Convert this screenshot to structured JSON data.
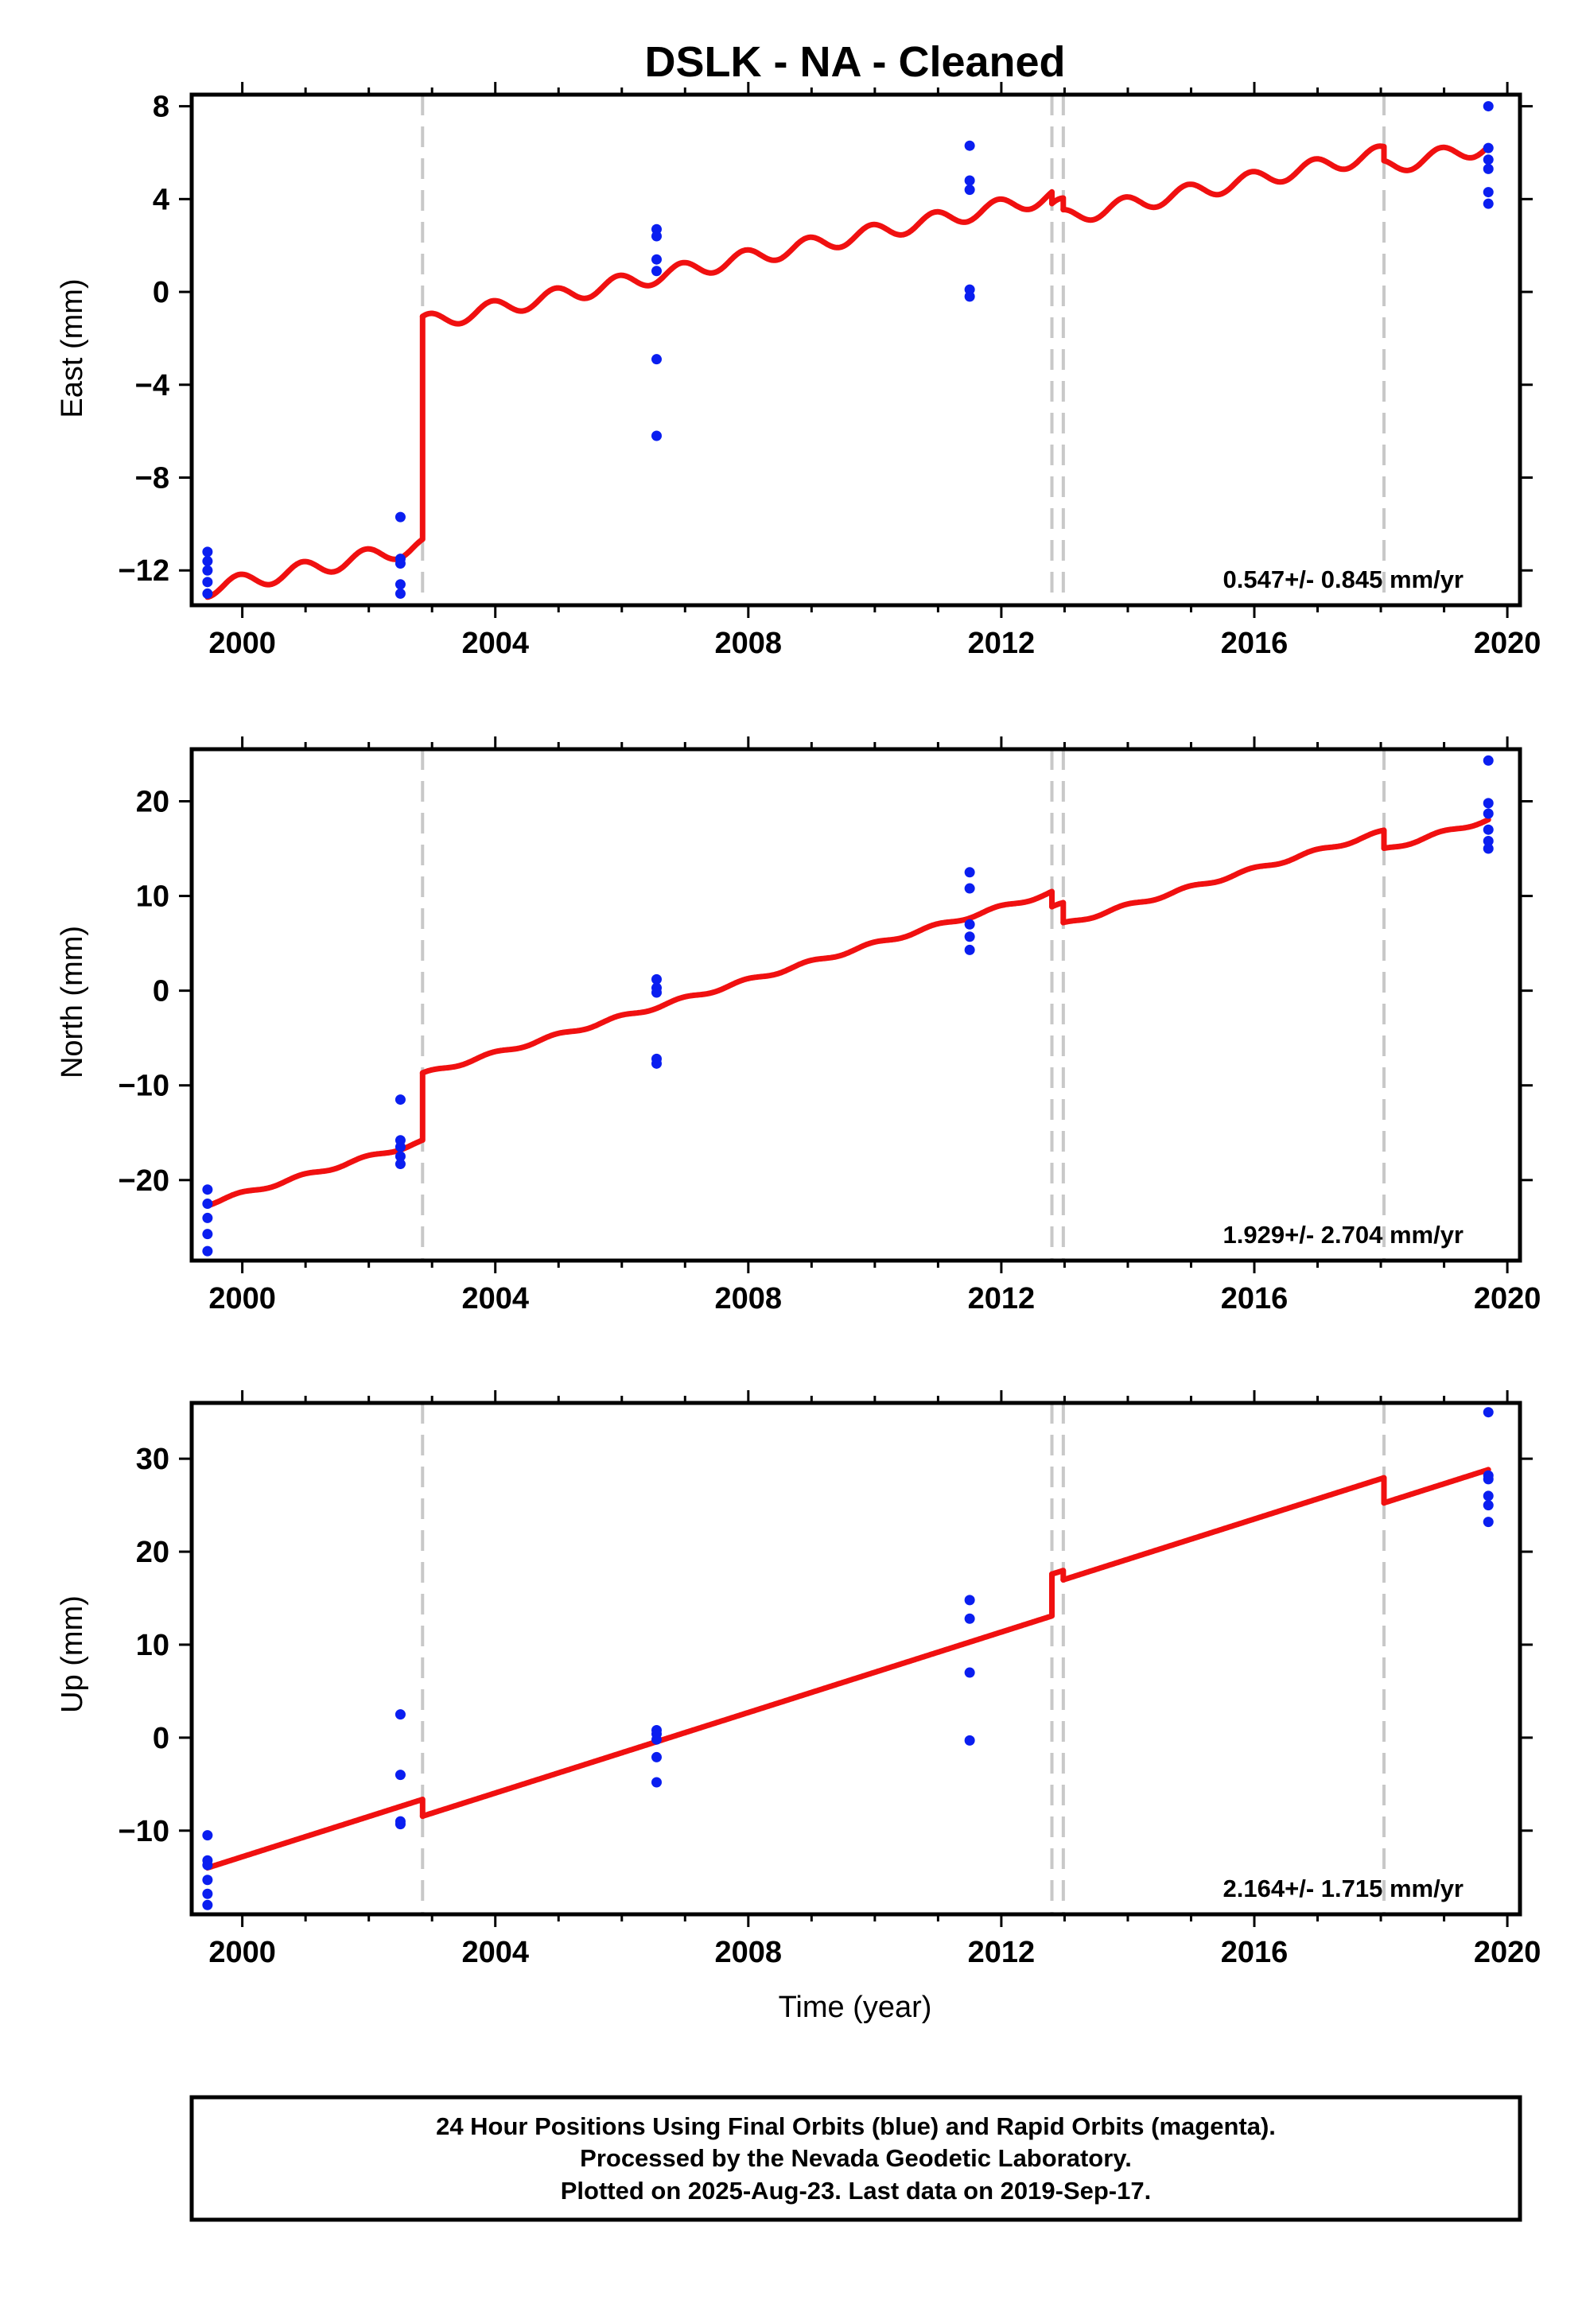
{
  "title": "DSLK  - NA - Cleaned",
  "x_axis_label": "Time (year)",
  "footer": {
    "line1": "24 Hour Positions Using Final Orbits (blue) and Rapid Orbits (magenta).",
    "line2": "Processed by the Nevada Geodetic Laboratory.",
    "line3": "Plotted on 2025-Aug-23. Last data on 2019-Sep-17."
  },
  "colors": {
    "points": "#0a1ef0",
    "model": "#f01010",
    "breaks": "#c8c8c8",
    "frame": "#000000"
  },
  "chart_data": [
    {
      "type": "scatter",
      "panel": "east",
      "ylabel": "East (mm)",
      "xlim": [
        1999.2,
        2020.2
      ],
      "ylim": [
        -13.5,
        8.5
      ],
      "xticks": [
        2000,
        2004,
        2008,
        2012,
        2016,
        2020
      ],
      "xtick_labels": [
        "2000",
        "2004",
        "2008",
        "2012",
        "2016",
        "2020"
      ],
      "yticks": [
        -12,
        -8,
        -4,
        0,
        4,
        8
      ],
      "ytick_labels": [
        "−12",
        "−8",
        "−4",
        "0",
        "4",
        "8"
      ],
      "rate_text": "0.547+/- 0.845 mm/yr",
      "break_lines": [
        2002.85,
        2012.8,
        2012.98,
        2018.05
      ],
      "points": [
        [
          1999.45,
          -11.2
        ],
        [
          1999.45,
          -11.6
        ],
        [
          1999.45,
          -12.0
        ],
        [
          1999.45,
          -12.5
        ],
        [
          1999.45,
          -13.0
        ],
        [
          2002.5,
          -9.7
        ],
        [
          2002.5,
          -11.5
        ],
        [
          2002.5,
          -11.7
        ],
        [
          2002.5,
          -12.6
        ],
        [
          2002.5,
          -13.0
        ],
        [
          2006.55,
          2.7
        ],
        [
          2006.55,
          2.4
        ],
        [
          2006.55,
          1.4
        ],
        [
          2006.55,
          0.9
        ],
        [
          2006.55,
          -2.9
        ],
        [
          2006.55,
          -6.2
        ],
        [
          2011.5,
          6.3
        ],
        [
          2011.5,
          4.8
        ],
        [
          2011.5,
          4.4
        ],
        [
          2011.5,
          0.1
        ],
        [
          2011.5,
          -0.2
        ],
        [
          2019.7,
          8.0
        ],
        [
          2019.7,
          6.2
        ],
        [
          2019.7,
          5.7
        ],
        [
          2019.7,
          5.3
        ],
        [
          2019.7,
          4.3
        ],
        [
          2019.7,
          3.8
        ]
      ],
      "model": {
        "anchor": 1999.45,
        "rate": 0.547,
        "annual_amplitude": 0.35,
        "segments": [
          {
            "start": 1999.45,
            "end": 2002.85,
            "offset": -12.8
          },
          {
            "start": 2002.85,
            "end": 2012.8,
            "offset": -3.2
          },
          {
            "start": 2012.8,
            "end": 2012.98,
            "offset": -3.7
          },
          {
            "start": 2012.98,
            "end": 2018.05,
            "offset": -4.2
          },
          {
            "start": 2018.05,
            "end": 2019.7,
            "offset": -4.8
          }
        ]
      }
    },
    {
      "type": "scatter",
      "panel": "north",
      "ylabel": "North (mm)",
      "xlim": [
        1999.2,
        2020.2
      ],
      "ylim": [
        -28.5,
        25.5
      ],
      "xticks": [
        2000,
        2004,
        2008,
        2012,
        2016,
        2020
      ],
      "xtick_labels": [
        "2000",
        "2004",
        "2008",
        "2012",
        "2016",
        "2020"
      ],
      "yticks": [
        -20,
        -10,
        0,
        10,
        20
      ],
      "ytick_labels": [
        "−20",
        "−10",
        "0",
        "10",
        "20"
      ],
      "rate_text": "1.929+/- 2.704 mm/yr",
      "break_lines": [
        2002.85,
        2012.8,
        2012.98,
        2018.05
      ],
      "points": [
        [
          1999.45,
          -21.0
        ],
        [
          1999.45,
          -22.5
        ],
        [
          1999.45,
          -24.0
        ],
        [
          1999.45,
          -25.7
        ],
        [
          1999.45,
          -27.5
        ],
        [
          2002.5,
          -11.5
        ],
        [
          2002.5,
          -15.8
        ],
        [
          2002.5,
          -16.5
        ],
        [
          2002.5,
          -17.5
        ],
        [
          2002.5,
          -18.3
        ],
        [
          2006.55,
          1.2
        ],
        [
          2006.55,
          0.3
        ],
        [
          2006.55,
          -0.2
        ],
        [
          2006.55,
          -7.2
        ],
        [
          2006.55,
          -7.7
        ],
        [
          2011.5,
          12.5
        ],
        [
          2011.5,
          10.8
        ],
        [
          2011.5,
          7.0
        ],
        [
          2011.5,
          5.7
        ],
        [
          2011.5,
          4.3
        ],
        [
          2019.7,
          24.3
        ],
        [
          2019.7,
          19.8
        ],
        [
          2019.7,
          18.7
        ],
        [
          2019.7,
          17.0
        ],
        [
          2019.7,
          15.8
        ],
        [
          2019.7,
          15.0
        ]
      ],
      "model": {
        "anchor": 1999.45,
        "rate": 1.929,
        "annual_amplitude": 0.2,
        "segments": [
          {
            "start": 1999.45,
            "end": 2002.85,
            "offset": -22.5
          },
          {
            "start": 2002.85,
            "end": 2012.8,
            "offset": -15.4
          },
          {
            "start": 2012.8,
            "end": 2012.98,
            "offset": -17.0
          },
          {
            "start": 2012.98,
            "end": 2018.05,
            "offset": -19.1
          },
          {
            "start": 2018.05,
            "end": 2019.7,
            "offset": -21.0
          }
        ]
      }
    },
    {
      "type": "scatter",
      "panel": "up",
      "ylabel": "Up (mm)",
      "xlim": [
        1999.2,
        2020.2
      ],
      "ylim": [
        -19.0,
        36.0
      ],
      "xticks": [
        2000,
        2004,
        2008,
        2012,
        2016,
        2020
      ],
      "xtick_labels": [
        "2000",
        "2004",
        "2008",
        "2012",
        "2016",
        "2020"
      ],
      "yticks": [
        -10,
        0,
        10,
        20,
        30
      ],
      "ytick_labels": [
        "−10",
        "0",
        "10",
        "20",
        "30"
      ],
      "rate_text": "2.164+/- 1.715 mm/yr",
      "break_lines": [
        2002.85,
        2012.8,
        2012.98,
        2018.05
      ],
      "points": [
        [
          1999.45,
          -10.5
        ],
        [
          1999.45,
          -13.2
        ],
        [
          1999.45,
          -13.7
        ],
        [
          1999.45,
          -15.3
        ],
        [
          1999.45,
          -16.8
        ],
        [
          1999.45,
          -18.0
        ],
        [
          2002.5,
          2.5
        ],
        [
          2002.5,
          -4.0
        ],
        [
          2002.5,
          -9.0
        ],
        [
          2002.5,
          -9.3
        ],
        [
          2006.55,
          0.8
        ],
        [
          2006.55,
          0.4
        ],
        [
          2006.55,
          -0.2
        ],
        [
          2006.55,
          -2.1
        ],
        [
          2006.55,
          -4.8
        ],
        [
          2011.5,
          14.8
        ],
        [
          2011.5,
          12.8
        ],
        [
          2011.5,
          7.0
        ],
        [
          2011.5,
          -0.3
        ],
        [
          2019.7,
          35.0
        ],
        [
          2019.7,
          28.2
        ],
        [
          2019.7,
          27.8
        ],
        [
          2019.7,
          26.0
        ],
        [
          2019.7,
          25.0
        ],
        [
          2019.7,
          23.2
        ]
      ],
      "model": {
        "anchor": 1999.45,
        "rate": 2.164,
        "annual_amplitude": 0.0,
        "segments": [
          {
            "start": 1999.45,
            "end": 2002.85,
            "offset": -14.0
          },
          {
            "start": 2002.85,
            "end": 2012.8,
            "offset": -15.8
          },
          {
            "start": 2012.8,
            "end": 2012.98,
            "offset": -11.3
          },
          {
            "start": 2012.98,
            "end": 2018.05,
            "offset": -12.3
          },
          {
            "start": 2018.05,
            "end": 2019.7,
            "offset": -15.0
          }
        ]
      }
    }
  ]
}
